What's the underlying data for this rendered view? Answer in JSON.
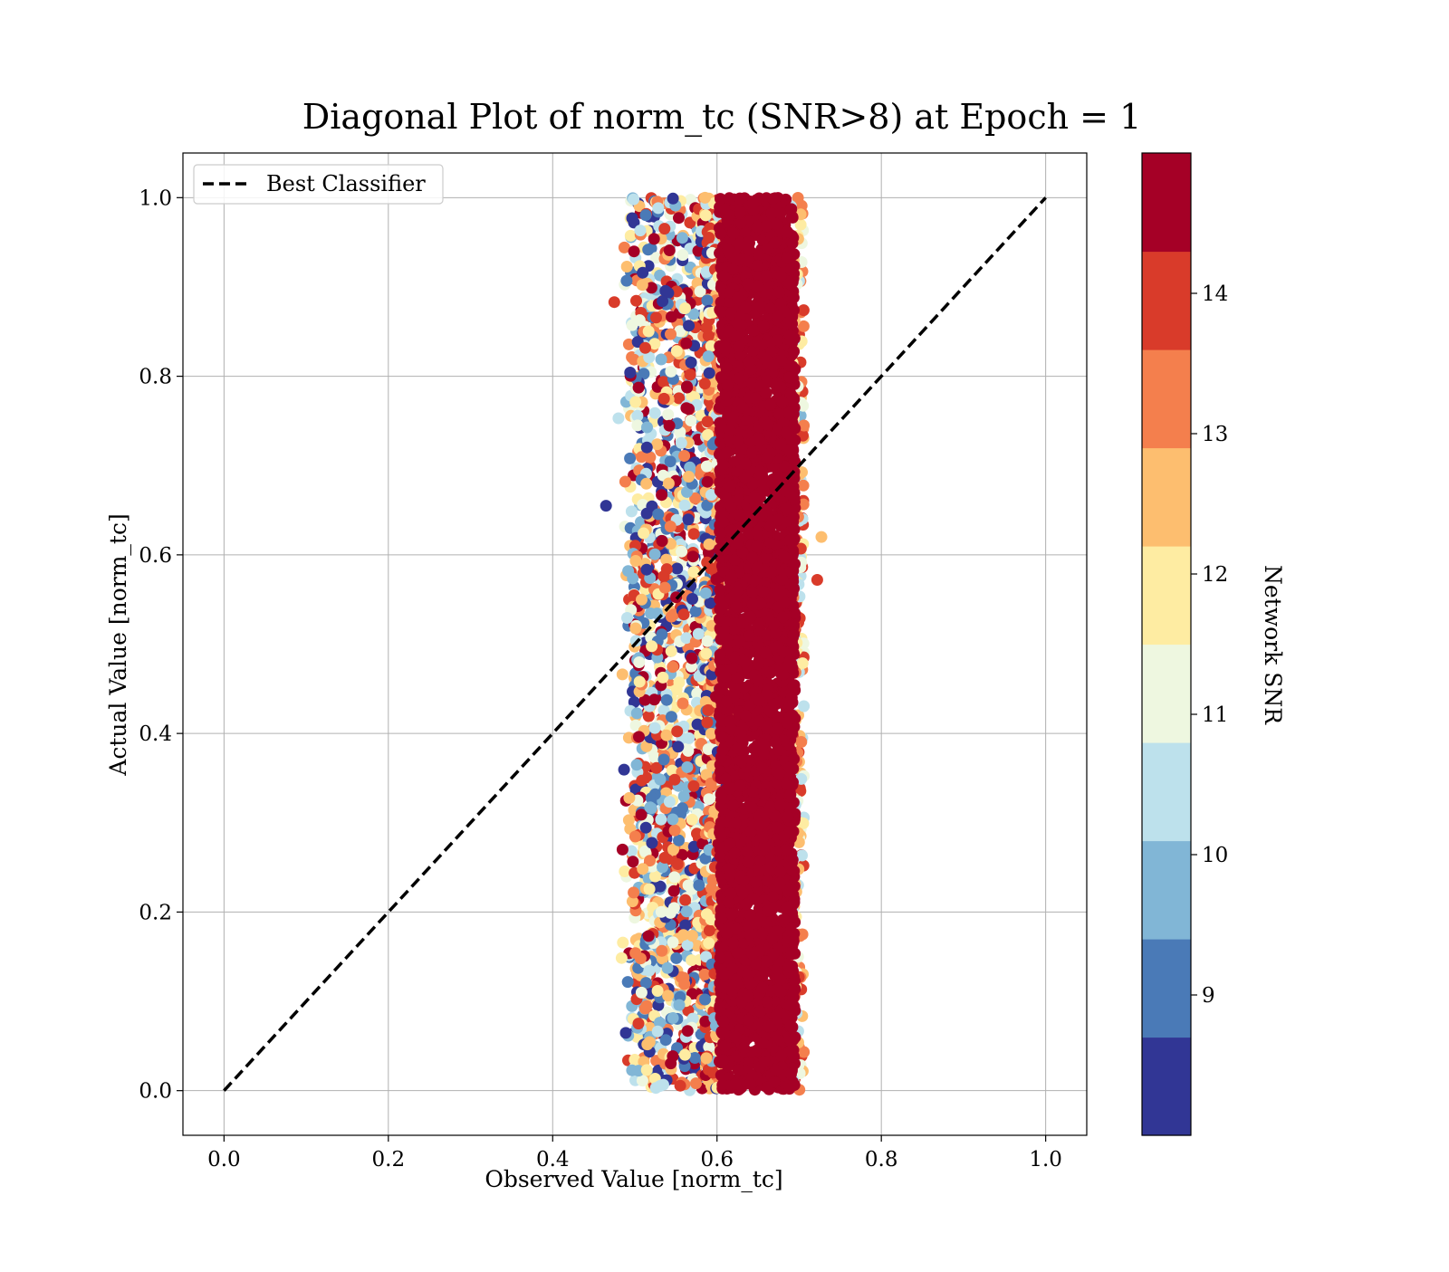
{
  "chart_data": {
    "type": "scatter",
    "title": "Diagonal Plot of norm_tc (SNR>8) at Epoch = 1",
    "xlabel": "Observed Value [norm_tc]",
    "ylabel": "Actual Value [norm_tc]",
    "xlim": [
      -0.05,
      1.05
    ],
    "ylim": [
      -0.05,
      1.05
    ],
    "xticks": [
      "0.0",
      "0.2",
      "0.4",
      "0.6",
      "0.8",
      "1.0"
    ],
    "yticks": [
      "0.0",
      "0.2",
      "0.4",
      "0.6",
      "0.8",
      "1.0"
    ],
    "grid": true,
    "legend": {
      "placement": "upper-left",
      "entries": [
        "Best Classifier"
      ]
    },
    "diagonal_line": {
      "name": "Best Classifier",
      "x": [
        0.0,
        1.0
      ],
      "y": [
        0.0,
        1.0
      ],
      "style": "dashed",
      "color": "#000000"
    },
    "colorbar": {
      "label": "Network SNR",
      "range": [
        8,
        15
      ],
      "ticks": [
        "9",
        "10",
        "11",
        "12",
        "13",
        "14"
      ],
      "bins": [
        {
          "from": 8.0,
          "to": 8.7,
          "color": "#313695"
        },
        {
          "from": 8.7,
          "to": 9.4,
          "color": "#4a7ab7"
        },
        {
          "from": 9.4,
          "to": 10.1,
          "color": "#81b6d6"
        },
        {
          "from": 10.1,
          "to": 10.8,
          "color": "#bde1ec"
        },
        {
          "from": 10.8,
          "to": 11.5,
          "color": "#eef7e0"
        },
        {
          "from": 11.5,
          "to": 12.2,
          "color": "#feeca2"
        },
        {
          "from": 12.2,
          "to": 12.9,
          "color": "#fdbe6f"
        },
        {
          "from": 12.9,
          "to": 13.6,
          "color": "#f47f4d"
        },
        {
          "from": 13.6,
          "to": 14.3,
          "color": "#d93b2a"
        },
        {
          "from": 14.3,
          "to": 15.0,
          "color": "#a50026"
        }
      ]
    },
    "scatter_summary": {
      "x_range": [
        0.46,
        0.73
      ],
      "y_range": [
        0.0,
        1.0
      ],
      "dense_high_snr_x_range": [
        0.6,
        0.7
      ],
      "outliers": [
        {
          "x": 0.465,
          "y": 0.655,
          "snr": 8.2
        },
        {
          "x": 0.727,
          "y": 0.62,
          "snr": 12.5
        },
        {
          "x": 0.722,
          "y": 0.572,
          "snr": 14.0
        },
        {
          "x": 0.485,
          "y": 0.27,
          "snr": 14.8
        },
        {
          "x": 0.475,
          "y": 0.883,
          "snr": 14.0
        },
        {
          "x": 0.48,
          "y": 0.753,
          "snr": 10.5
        },
        {
          "x": 0.49,
          "y": 0.907,
          "snr": 9.3
        }
      ]
    }
  }
}
